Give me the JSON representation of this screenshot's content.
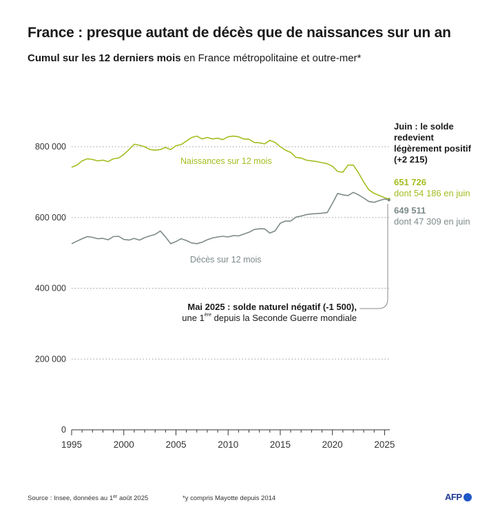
{
  "title": "France : presque autant de décès que de naissances sur un an",
  "subtitle_bold": "Cumul sur les 12 derniers mois",
  "subtitle_rest": " en France métropolitaine et outre-mer*",
  "annotations": {
    "juin": "Juin : le solde redevient légèrement positif (+2 215)",
    "naissances_value": "651 726",
    "naissances_detail": "dont 54 186 en juin",
    "deces_value": "649 511",
    "deces_detail": "dont 47 309 en juin",
    "mai_bold": "Mai 2025 : solde naturel négatif (-1 500),",
    "mai_line2_pre": "une 1",
    "mai_line2_sup": "ère",
    "mai_line2_post": " depuis la Seconde Guerre mondiale"
  },
  "footer": {
    "source_pre": "Source : Insee, données au 1",
    "source_sup": "er",
    "source_post": " août 2025",
    "note": "*y compris Mayotte depuis 2014",
    "logo": "AFP"
  },
  "colors": {
    "naissances": "#a3bd1f",
    "deces": "#7d8a8a",
    "grid": "#9a9a9a",
    "axis": "#333333"
  },
  "chart_data": {
    "type": "line",
    "title": "France : presque autant de décès que de naissances sur un an",
    "xlabel": "",
    "ylabel": "",
    "xlim": [
      1995,
      2025.5
    ],
    "ylim": [
      0,
      800000
    ],
    "x_ticks": [
      1995,
      2000,
      2005,
      2010,
      2015,
      2020,
      2025
    ],
    "y_ticks": [
      0,
      200000,
      400000,
      600000,
      800000
    ],
    "y_tick_labels": [
      "0",
      "200 000",
      "400 000",
      "600 000",
      "800 000"
    ],
    "series": [
      {
        "name": "Naissances sur 12 mois",
        "x": [
          1995,
          1995.5,
          1996,
          1996.5,
          1997,
          1997.5,
          1998,
          1998.5,
          1999,
          1999.5,
          2000,
          2000.5,
          2001,
          2001.5,
          2002,
          2002.5,
          2003,
          2003.5,
          2004,
          2004.5,
          2005,
          2005.5,
          2006,
          2006.5,
          2007,
          2007.5,
          2008,
          2008.5,
          2009,
          2009.5,
          2010,
          2010.5,
          2011,
          2011.5,
          2012,
          2012.5,
          2013,
          2013.5,
          2014,
          2014.5,
          2015,
          2015.5,
          2016,
          2016.5,
          2017,
          2017.5,
          2018,
          2018.5,
          2019,
          2019.5,
          2020,
          2020.5,
          2021,
          2021.5,
          2022,
          2022.5,
          2023,
          2023.5,
          2024,
          2024.5,
          2025,
          2025.42
        ],
        "values": [
          742000,
          748000,
          760000,
          766000,
          764000,
          760000,
          762000,
          758000,
          766000,
          768000,
          778000,
          792000,
          807000,
          804000,
          800000,
          792000,
          790000,
          792000,
          798000,
          792000,
          803000,
          806000,
          816000,
          826000,
          830000,
          822000,
          826000,
          822000,
          824000,
          820000,
          828000,
          830000,
          828000,
          822000,
          821000,
          812000,
          811000,
          808000,
          818000,
          812000,
          800000,
          790000,
          784000,
          770000,
          768000,
          762000,
          760000,
          758000,
          755000,
          752000,
          745000,
          730000,
          728000,
          748000,
          748000,
          726000,
          700000,
          678000,
          668000,
          662000,
          656000,
          651726
        ]
      },
      {
        "name": "Décès sur 12 mois",
        "x": [
          1995,
          1995.5,
          1996,
          1996.5,
          1997,
          1997.5,
          1998,
          1998.5,
          1999,
          1999.5,
          2000,
          2000.5,
          2001,
          2001.5,
          2002,
          2002.5,
          2003,
          2003.5,
          2004,
          2004.5,
          2005,
          2005.5,
          2006,
          2006.5,
          2007,
          2007.5,
          2008,
          2008.5,
          2009,
          2009.5,
          2010,
          2010.5,
          2011,
          2011.5,
          2012,
          2012.5,
          2013,
          2013.5,
          2014,
          2014.5,
          2015,
          2015.5,
          2016,
          2016.5,
          2017,
          2017.5,
          2018,
          2018.5,
          2019,
          2019.5,
          2020,
          2020.5,
          2021,
          2021.5,
          2022,
          2022.5,
          2023,
          2023.5,
          2024,
          2024.5,
          2025,
          2025.42
        ],
        "values": [
          526000,
          533000,
          540000,
          546000,
          544000,
          540000,
          541000,
          537000,
          546000,
          547000,
          538000,
          536000,
          541000,
          536000,
          543000,
          548000,
          552000,
          562000,
          545000,
          526000,
          532000,
          540000,
          535000,
          528000,
          526000,
          530000,
          537000,
          542000,
          545000,
          547000,
          545000,
          549000,
          548000,
          553000,
          558000,
          566000,
          568000,
          568000,
          556000,
          562000,
          584000,
          590000,
          590000,
          601000,
          604000,
          608000,
          610000,
          611000,
          612000,
          614000,
          640000,
          668000,
          664000,
          662000,
          671000,
          664000,
          655000,
          645000,
          643000,
          648000,
          652000,
          649511
        ]
      }
    ],
    "series_labels": [
      "Naissances sur 12 mois",
      "Décès sur 12 mois"
    ],
    "annotation_point": {
      "x": 2025.33,
      "label": "Mai 2025 : solde naturel négatif (-1 500)"
    }
  }
}
